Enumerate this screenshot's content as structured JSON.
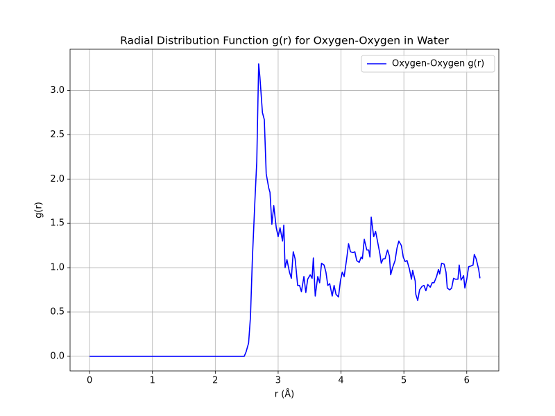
{
  "chart_data": {
    "type": "line",
    "title": "Radial Distribution Function g(r) for Oxygen-Oxygen in Water",
    "x_label": "r (Å)",
    "y_label": "g(r)",
    "xlim": [
      -0.31,
      6.51
    ],
    "ylim": [
      -0.165,
      3.465
    ],
    "xticks": [
      0,
      1,
      2,
      3,
      4,
      5,
      6
    ],
    "yticks": [
      {
        "value": 0,
        "label": "0.0"
      },
      {
        "value": 0.5,
        "label": "0.5"
      },
      {
        "value": 1,
        "label": "1.0"
      },
      {
        "value": 1.5,
        "label": "1.5"
      },
      {
        "value": 2,
        "label": "2.0"
      },
      {
        "value": 2.5,
        "label": "2.5"
      },
      {
        "value": 3,
        "label": "3.0"
      }
    ],
    "grid": true,
    "legend": "upper right",
    "x": [
      0,
      2.46,
      2.49,
      2.53,
      2.56,
      2.59,
      2.63,
      2.66,
      2.69,
      2.71,
      2.75,
      2.78,
      2.81,
      2.85,
      2.87,
      2.9,
      2.93,
      2.97,
      3.0,
      3.03,
      3.07,
      3.09,
      3.11,
      3.14,
      3.18,
      3.21,
      3.24,
      3.27,
      3.31,
      3.34,
      3.37,
      3.41,
      3.44,
      3.47,
      3.51,
      3.54,
      3.56,
      3.59,
      3.63,
      3.66,
      3.69,
      3.73,
      3.76,
      3.79,
      3.82,
      3.86,
      3.89,
      3.92,
      3.96,
      3.99,
      4.02,
      4.05,
      4.09,
      4.12,
      4.15,
      4.19,
      4.22,
      4.25,
      4.29,
      4.32,
      4.34,
      4.37,
      4.41,
      4.44,
      4.46,
      4.48,
      4.52,
      4.55,
      4.58,
      4.62,
      4.64,
      4.67,
      4.7,
      4.74,
      4.77,
      4.79,
      4.82,
      4.86,
      4.89,
      4.92,
      4.96,
      4.99,
      5.02,
      5.05,
      5.09,
      5.12,
      5.14,
      5.18,
      5.19,
      5.22,
      5.25,
      5.29,
      5.32,
      5.35,
      5.38,
      5.42,
      5.45,
      5.48,
      5.52,
      5.55,
      5.57,
      5.6,
      5.64,
      5.67,
      5.69,
      5.73,
      5.76,
      5.79,
      5.82,
      5.86,
      5.88,
      5.91,
      5.95,
      5.97,
      6.0,
      6.03,
      6.07,
      6.1,
      6.12,
      6.15,
      6.19,
      6.21
    ],
    "series": [
      {
        "name": "Oxygen-Oxygen g(r)",
        "color": "#0000ff",
        "values": [
          0,
          0,
          0.05,
          0.15,
          0.45,
          1.1,
          1.75,
          2.2,
          3.3,
          3.15,
          2.75,
          2.67,
          2.06,
          1.9,
          1.85,
          1.49,
          1.7,
          1.45,
          1.35,
          1.45,
          1.3,
          1.48,
          1.0,
          1.09,
          0.95,
          0.88,
          1.18,
          1.1,
          0.8,
          0.8,
          0.73,
          0.9,
          0.72,
          0.87,
          0.92,
          0.88,
          1.11,
          0.68,
          0.9,
          0.83,
          1.05,
          1.03,
          0.95,
          0.8,
          0.82,
          0.68,
          0.8,
          0.7,
          0.67,
          0.85,
          0.95,
          0.9,
          1.1,
          1.27,
          1.18,
          1.17,
          1.18,
          1.08,
          1.06,
          1.12,
          1.1,
          1.32,
          1.2,
          1.2,
          1.12,
          1.57,
          1.35,
          1.41,
          1.3,
          1.15,
          1.05,
          1.1,
          1.1,
          1.2,
          1.13,
          0.92,
          1.0,
          1.08,
          1.22,
          1.3,
          1.25,
          1.12,
          1.07,
          1.08,
          0.98,
          0.87,
          0.97,
          0.85,
          0.7,
          0.63,
          0.75,
          0.79,
          0.8,
          0.74,
          0.81,
          0.78,
          0.83,
          0.83,
          0.9,
          0.98,
          0.93,
          1.05,
          1.04,
          0.95,
          0.77,
          0.75,
          0.77,
          0.88,
          0.87,
          0.87,
          1.03,
          0.86,
          0.91,
          0.77,
          0.87,
          1.01,
          1.02,
          1.03,
          1.15,
          1.1,
          0.98,
          0.88
        ]
      }
    ]
  }
}
